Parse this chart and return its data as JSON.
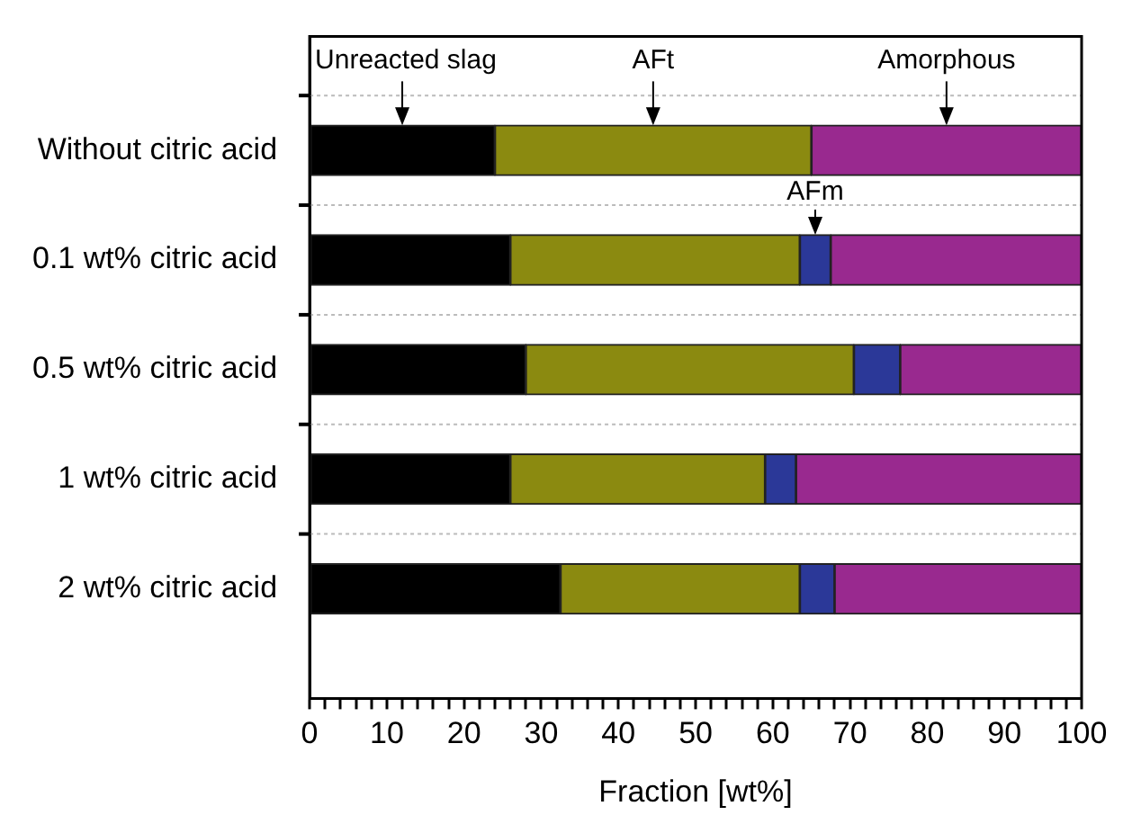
{
  "chart_data": {
    "type": "bar",
    "orientation": "horizontal",
    "stacked": true,
    "xlabel": "Fraction [wt%]",
    "categories": [
      "Without citric acid",
      "0.1 wt% citric acid",
      "0.5 wt% citric acid",
      "1 wt% citric acid",
      "2 wt% citric acid"
    ],
    "series": [
      {
        "name": "Unreacted slag",
        "color": "#000000",
        "values": [
          24,
          26,
          28,
          26,
          32.5
        ]
      },
      {
        "name": "AFt",
        "color": "#8b8a10",
        "values": [
          41,
          37.5,
          42.5,
          33,
          31
        ]
      },
      {
        "name": "AFm",
        "color": "#2b3898",
        "values": [
          null,
          4,
          6,
          4,
          4.5
        ]
      },
      {
        "name": "Amorphous",
        "color": "#99298f",
        "values": [
          35,
          32.5,
          23.5,
          37,
          32
        ]
      }
    ],
    "xlim": [
      0,
      100
    ],
    "xticks": [
      0,
      {
        "value": 2,
        "label": null
      },
      {
        "value": 4,
        "label": null
      },
      {
        "value": 6,
        "label": null
      },
      {
        "value": 8,
        "label": null
      },
      10,
      {
        "value": 12,
        "label": null
      },
      {
        "value": 14,
        "label": null
      },
      {
        "value": 16,
        "label": null
      },
      {
        "value": 18,
        "label": null
      },
      20,
      {
        "value": 22,
        "label": null
      },
      {
        "value": 24,
        "label": null
      },
      {
        "value": 26,
        "label": null
      },
      {
        "value": 28,
        "label": null
      },
      30,
      {
        "value": 32,
        "label": null
      },
      {
        "value": 34,
        "label": null
      },
      {
        "value": 36,
        "label": null
      },
      {
        "value": 38,
        "label": null
      },
      40,
      {
        "value": 42,
        "label": null
      },
      {
        "value": 44,
        "label": null
      },
      {
        "value": 46,
        "label": null
      },
      {
        "value": 48,
        "label": null
      },
      50,
      {
        "value": 52,
        "label": null
      },
      {
        "value": 54,
        "label": null
      },
      {
        "value": 56,
        "label": null
      },
      {
        "value": 58,
        "label": null
      },
      60,
      {
        "value": 62,
        "label": null
      },
      {
        "value": 64,
        "label": null
      },
      {
        "value": 66,
        "label": null
      },
      {
        "value": 68,
        "label": null
      },
      70,
      {
        "value": 72,
        "label": null
      },
      {
        "value": 74,
        "label": null
      },
      {
        "value": 76,
        "label": null
      },
      {
        "value": 78,
        "label": null
      },
      80,
      {
        "value": 82,
        "label": null
      },
      {
        "value": 84,
        "label": null
      },
      {
        "value": 86,
        "label": null
      },
      {
        "value": 88,
        "label": null
      },
      90,
      {
        "value": 92,
        "label": null
      },
      {
        "value": 94,
        "label": null
      },
      {
        "value": 96,
        "label": null
      },
      {
        "value": 98,
        "label": null
      },
      100
    ],
    "grid": "y",
    "legend": false
  }
}
